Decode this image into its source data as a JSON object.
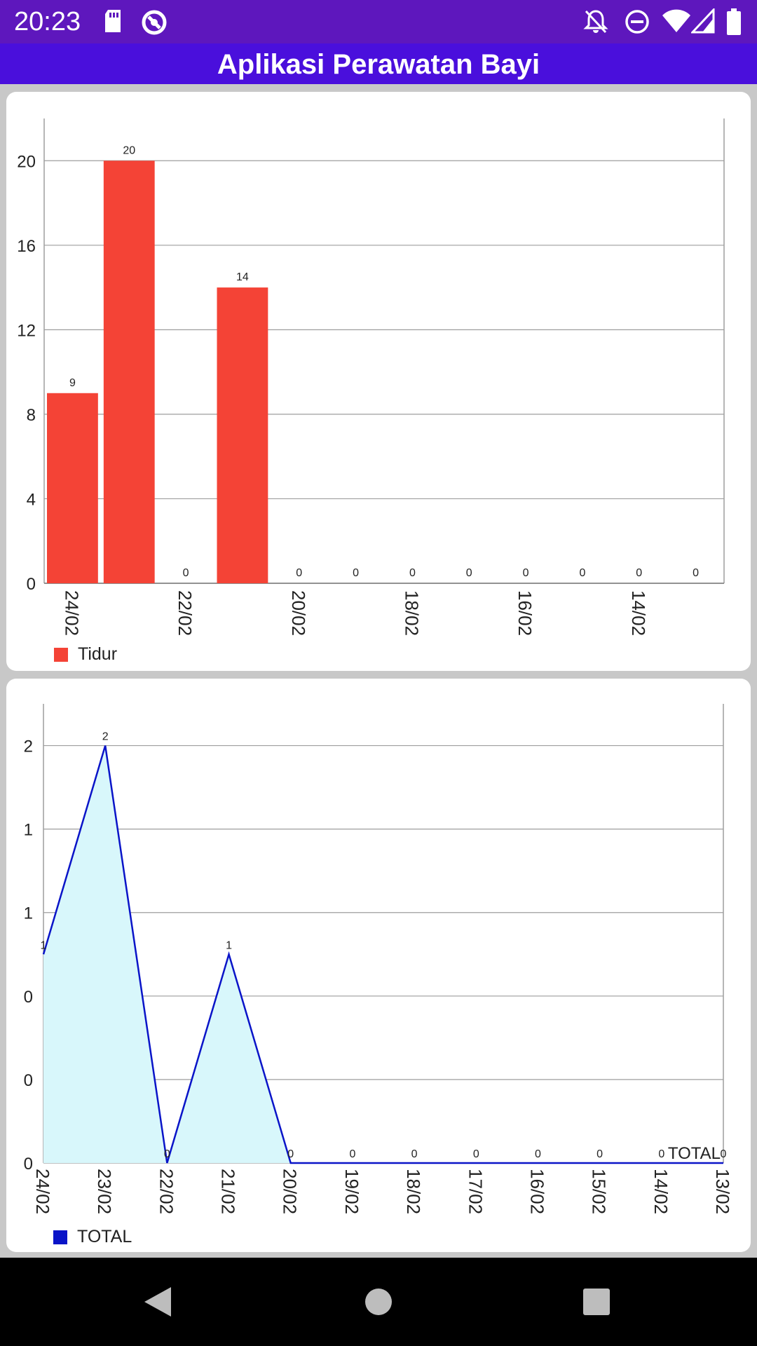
{
  "status_bar": {
    "time": "20:23",
    "icons": [
      "sd-card-icon",
      "sync-icon",
      "notifications-off-icon",
      "do-not-disturb-icon",
      "wifi-icon",
      "signal-icon",
      "battery-icon"
    ]
  },
  "app_bar": {
    "title": "Aplikasi Perawatan Bayi"
  },
  "charts": {
    "colors": {
      "bar": "#f44336",
      "line": "#0a14c8",
      "fill": "#d8f7fb"
    },
    "bar": {
      "legend": "Tidur",
      "y_ticks": [
        "0",
        "4",
        "8",
        "12",
        "16",
        "20"
      ],
      "x_tick_labels": [
        "24/02",
        "22/02",
        "20/02",
        "18/02",
        "16/02",
        "14/02"
      ]
    },
    "line": {
      "legend": "TOTAL",
      "y_ticks": [
        "0",
        "0",
        "0",
        "1",
        "1",
        "2"
      ],
      "x_tick_labels": [
        "24/02",
        "23/02",
        "22/02",
        "21/02",
        "20/02",
        "19/02",
        "18/02",
        "17/02",
        "16/02",
        "15/02",
        "14/02",
        "13/02"
      ],
      "series_end_label": "TOTAL"
    }
  },
  "chart_data": [
    {
      "type": "bar",
      "categories": [
        "24/02",
        "23/02",
        "22/02",
        "21/02",
        "20/02",
        "19/02",
        "18/02",
        "17/02",
        "16/02",
        "15/02",
        "14/02",
        "13/02"
      ],
      "series": [
        {
          "name": "Tidur",
          "values": [
            9,
            20,
            0,
            14,
            0,
            0,
            0,
            0,
            0,
            0,
            0,
            0
          ]
        }
      ],
      "data_labels": [
        "9",
        "20",
        "0",
        "14",
        "0",
        "0",
        "0",
        "0",
        "0",
        "0",
        "0",
        "0"
      ],
      "ylim": [
        0,
        22
      ],
      "grid": true,
      "legend": "bottom-left"
    },
    {
      "type": "area",
      "categories": [
        "24/02",
        "23/02",
        "22/02",
        "21/02",
        "20/02",
        "19/02",
        "18/02",
        "17/02",
        "16/02",
        "15/02",
        "14/02",
        "13/02"
      ],
      "series": [
        {
          "name": "TOTAL",
          "values": [
            1,
            2,
            0,
            1,
            0,
            0,
            0,
            0,
            0,
            0,
            0,
            0
          ]
        }
      ],
      "data_labels": [
        "1",
        "2",
        "0",
        "1",
        "0",
        "0",
        "0",
        "0",
        "0",
        "0",
        "0",
        "0"
      ],
      "ylim": [
        0,
        2.2
      ],
      "grid": true,
      "legend": "bottom-left"
    }
  ],
  "nav_bar": {
    "buttons": [
      "back-icon",
      "home-icon",
      "recents-icon"
    ]
  }
}
